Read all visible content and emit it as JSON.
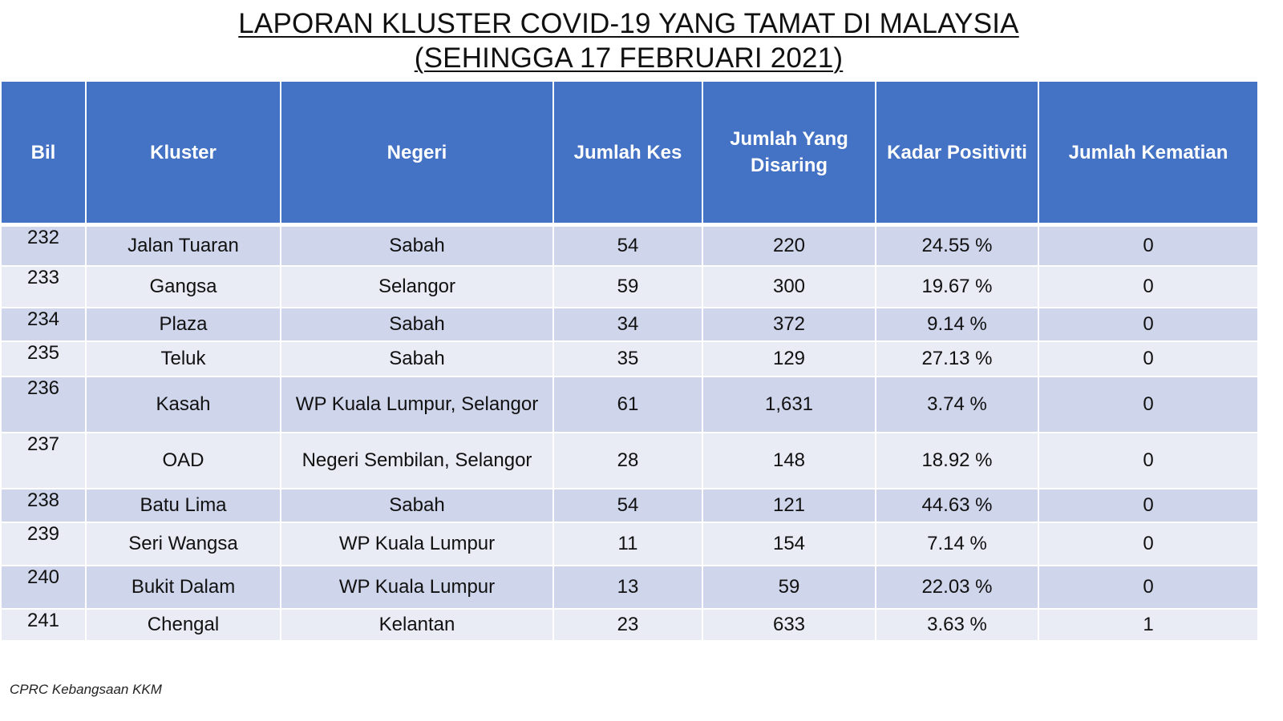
{
  "title": {
    "line1": "LAPORAN KLUSTER COVID-19 YANG TAMAT DI MALAYSIA",
    "line2": "(SEHINGGA 17 FEBRUARI 2021)"
  },
  "table": {
    "headers": {
      "bil": "Bil",
      "kluster": "Kluster",
      "negeri": "Negeri",
      "jumlah_kes": "Jumlah Kes",
      "jumlah_disaring_1": "Jumlah Yang",
      "jumlah_disaring_2": "Disaring",
      "kadar_positiviti": "Kadar Positiviti",
      "jumlah_kematian": "Jumlah Kematian"
    },
    "rows": [
      {
        "bil": "232",
        "kluster": "Jalan Tuaran",
        "negeri": "Sabah",
        "kes": "54",
        "disaring": "220",
        "positiviti": "24.55 %",
        "kematian": "0"
      },
      {
        "bil": "233",
        "kluster": "Gangsa",
        "negeri": "Selangor",
        "kes": "59",
        "disaring": "300",
        "positiviti": "19.67 %",
        "kematian": "0"
      },
      {
        "bil": "234",
        "kluster": "Plaza",
        "negeri": "Sabah",
        "kes": "34",
        "disaring": "372",
        "positiviti": "9.14 %",
        "kematian": "0"
      },
      {
        "bil": "235",
        "kluster": "Teluk",
        "negeri": "Sabah",
        "kes": "35",
        "disaring": "129",
        "positiviti": "27.13 %",
        "kematian": "0"
      },
      {
        "bil": "236",
        "kluster": "Kasah",
        "negeri": "WP Kuala Lumpur, Selangor",
        "kes": "61",
        "disaring": "1,631",
        "positiviti": "3.74 %",
        "kematian": "0"
      },
      {
        "bil": "237",
        "kluster": "OAD",
        "negeri": "Negeri Sembilan, Selangor",
        "kes": "28",
        "disaring": "148",
        "positiviti": "18.92 %",
        "kematian": "0"
      },
      {
        "bil": "238",
        "kluster": "Batu Lima",
        "negeri": "Sabah",
        "kes": "54",
        "disaring": "121",
        "positiviti": "44.63 %",
        "kematian": "0"
      },
      {
        "bil": "239",
        "kluster": "Seri Wangsa",
        "negeri": "WP Kuala Lumpur",
        "kes": "11",
        "disaring": "154",
        "positiviti": "7.14 %",
        "kematian": "0"
      },
      {
        "bil": "240",
        "kluster": "Bukit Dalam",
        "negeri": "WP Kuala Lumpur",
        "kes": "13",
        "disaring": "59",
        "positiviti": "22.03 %",
        "kematian": "0"
      },
      {
        "bil": "241",
        "kluster": "Chengal",
        "negeri": "Kelantan",
        "kes": "23",
        "disaring": "633",
        "positiviti": "3.63 %",
        "kematian": "1"
      }
    ]
  },
  "footer": "CPRC Kebangsaan KKM"
}
